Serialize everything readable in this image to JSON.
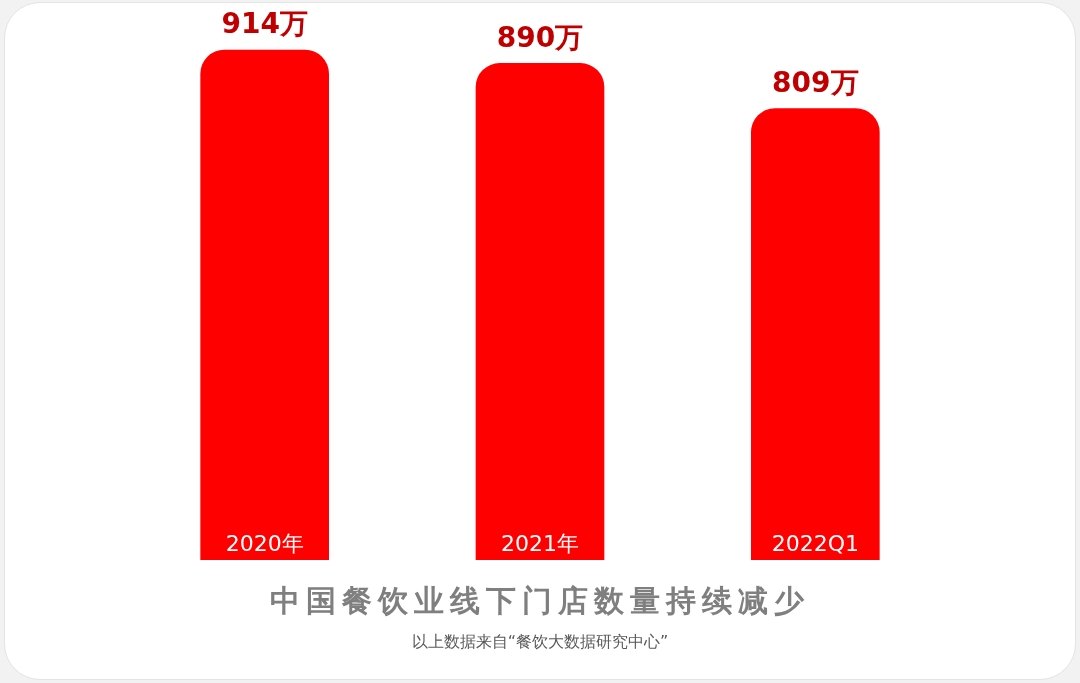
{
  "chart_data": {
    "type": "bar",
    "title": "中国餐饮业线下门店数量持续减少",
    "categories": [
      "2020年",
      "2021年",
      "2022Q1"
    ],
    "values": [
      914,
      890,
      809
    ],
    "value_labels": [
      "914万",
      "890万",
      "809万"
    ],
    "color": "#ff0000",
    "annotations": [
      "以上数据来自“餐饮大数据研究中心”"
    ]
  }
}
